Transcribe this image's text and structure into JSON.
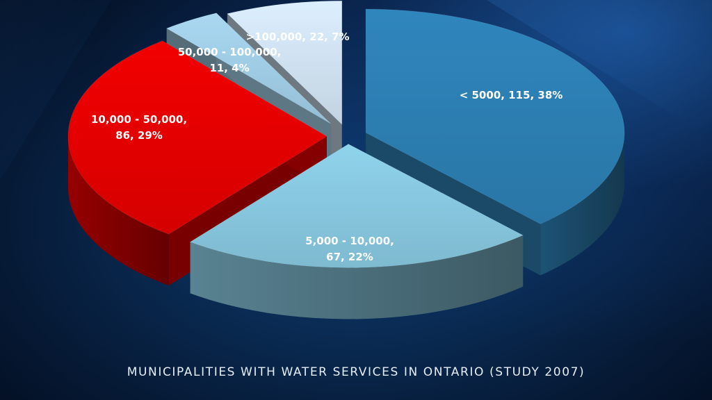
{
  "chart_data": {
    "type": "pie",
    "title": "MUNICIPALITIES WITH WATER SERVICES IN ONTARIO (STUDY 2007)",
    "slices": [
      {
        "category": "< 5000",
        "count": 115,
        "percent": 38,
        "label_lines": [
          "< 5000, 115, 38%"
        ],
        "color": "#2f86bd"
      },
      {
        "category": "5,000 - 10,000",
        "count": 67,
        "percent": 22,
        "label_lines": [
          "5,000 - 10,000,",
          "67, 22%"
        ],
        "color": "#8fd3ec"
      },
      {
        "category": "10,000 - 50,000",
        "count": 86,
        "percent": 29,
        "label_lines": [
          "10,000 - 50,000,",
          "86, 29%"
        ],
        "color": "#f20000"
      },
      {
        "category": "50,000 - 100,000",
        "count": 11,
        "percent": 4,
        "label_lines": [
          "50,000 - 100,000,",
          "11, 4%"
        ],
        "color": "#a9d8f2"
      },
      {
        "category": ">100,000",
        "count": 22,
        "percent": 7,
        "label_lines": [
          ">100,000, 22, 7%"
        ],
        "color": "#dcefff"
      }
    ],
    "legend": "none",
    "style": "3d-exploded"
  }
}
